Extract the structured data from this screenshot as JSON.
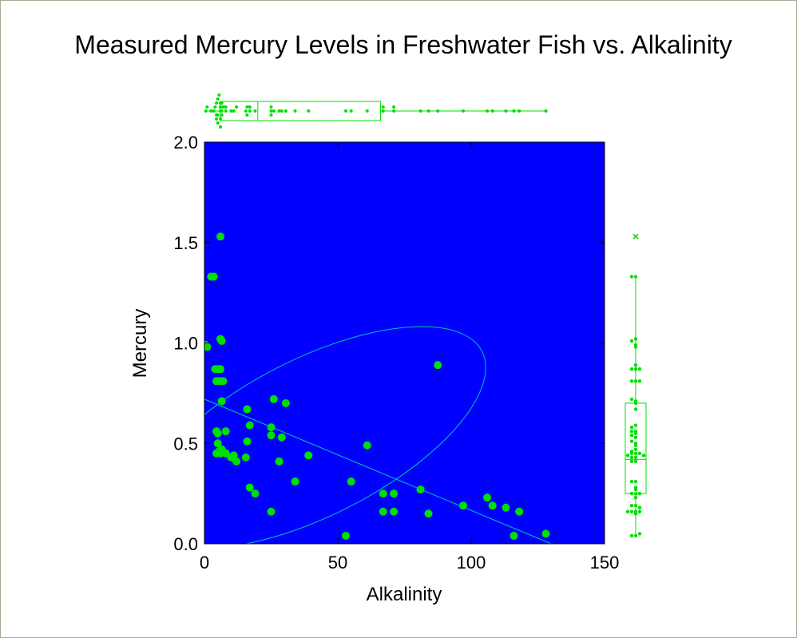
{
  "chart_data": {
    "type": "scatter",
    "title": "Measured Mercury Levels in Freshwater Fish vs. Alkalinity",
    "xlabel": "Alkalinity",
    "ylabel": "Mercury",
    "xlim": [
      0,
      150
    ],
    "ylim": [
      0,
      2
    ],
    "x_ticks": [
      "0",
      "50",
      "100",
      "150"
    ],
    "y_ticks": [
      "0.0",
      "0.5",
      "1.0",
      "1.5",
      "2.0"
    ],
    "grid": false,
    "colors": {
      "plot_background": "#0000ff",
      "points": "#00e000",
      "boxplot": "#00e000",
      "ellipse": "#00c8b0",
      "regression": "#00c8b0",
      "frame_border": "#a9ab98"
    },
    "regression_line": {
      "x": [
        0,
        130
      ],
      "y": [
        0.72,
        0.0
      ]
    },
    "density_ellipse": {
      "center": [
        40.8,
        0.53
      ],
      "radius_x": 71,
      "radius_y": 0.39,
      "rotation_deg": -27
    },
    "points": [
      {
        "x": 0.5,
        "y": 0.99
      },
      {
        "x": 1.0,
        "y": 0.98
      },
      {
        "x": 2.5,
        "y": 1.33
      },
      {
        "x": 3.5,
        "y": 1.33
      },
      {
        "x": 6.0,
        "y": 1.53
      },
      {
        "x": 6.0,
        "y": 1.02
      },
      {
        "x": 6.5,
        "y": 1.01
      },
      {
        "x": 4.0,
        "y": 0.87
      },
      {
        "x": 5.0,
        "y": 0.87
      },
      {
        "x": 6.0,
        "y": 0.87
      },
      {
        "x": 4.5,
        "y": 0.81
      },
      {
        "x": 6.0,
        "y": 0.81
      },
      {
        "x": 7.0,
        "y": 0.81
      },
      {
        "x": 6.5,
        "y": 0.71
      },
      {
        "x": 4.5,
        "y": 0.56
      },
      {
        "x": 5.0,
        "y": 0.55
      },
      {
        "x": 8.0,
        "y": 0.56
      },
      {
        "x": 5.0,
        "y": 0.5
      },
      {
        "x": 6.5,
        "y": 0.47
      },
      {
        "x": 5.5,
        "y": 0.46
      },
      {
        "x": 4.5,
        "y": 0.45
      },
      {
        "x": 6.0,
        "y": 0.45
      },
      {
        "x": 8.0,
        "y": 0.45
      },
      {
        "x": 10.0,
        "y": 0.43
      },
      {
        "x": 11.0,
        "y": 0.44
      },
      {
        "x": 12.0,
        "y": 0.41
      },
      {
        "x": 15.5,
        "y": 0.43
      },
      {
        "x": 16.0,
        "y": 0.67
      },
      {
        "x": 16.0,
        "y": 0.51
      },
      {
        "x": 17.0,
        "y": 0.59
      },
      {
        "x": 17.0,
        "y": 0.28
      },
      {
        "x": 19.0,
        "y": 0.25
      },
      {
        "x": 25.0,
        "y": 0.58
      },
      {
        "x": 25.0,
        "y": 0.54
      },
      {
        "x": 25.0,
        "y": 0.16
      },
      {
        "x": 26.0,
        "y": 0.72
      },
      {
        "x": 28.0,
        "y": 0.41
      },
      {
        "x": 29.0,
        "y": 0.53
      },
      {
        "x": 30.5,
        "y": 0.7
      },
      {
        "x": 34.0,
        "y": 0.31
      },
      {
        "x": 39.0,
        "y": 0.44
      },
      {
        "x": 53.0,
        "y": 0.04
      },
      {
        "x": 55.0,
        "y": 0.31
      },
      {
        "x": 61.0,
        "y": 0.49
      },
      {
        "x": 67.0,
        "y": 0.25
      },
      {
        "x": 67.0,
        "y": 0.16
      },
      {
        "x": 71.0,
        "y": 0.25
      },
      {
        "x": 71.0,
        "y": 0.16
      },
      {
        "x": 81.0,
        "y": 0.27
      },
      {
        "x": 84.0,
        "y": 0.15
      },
      {
        "x": 87.5,
        "y": 0.89
      },
      {
        "x": 97.0,
        "y": 0.19
      },
      {
        "x": 106.0,
        "y": 0.23
      },
      {
        "x": 108.0,
        "y": 0.19
      },
      {
        "x": 113.0,
        "y": 0.18
      },
      {
        "x": 116.0,
        "y": 0.04
      },
      {
        "x": 118.0,
        "y": 0.16
      },
      {
        "x": 128.0,
        "y": 0.05
      }
    ],
    "x_boxplot": {
      "q1": 6,
      "median": 20,
      "q3": 66,
      "whisker_low": 1,
      "whisker_high": 128
    },
    "y_boxplot": {
      "q1": 0.25,
      "median": 0.42,
      "q3": 0.7,
      "whisker_low": 0.04,
      "whisker_high": 1.33,
      "outliers": [
        1.53
      ]
    }
  }
}
